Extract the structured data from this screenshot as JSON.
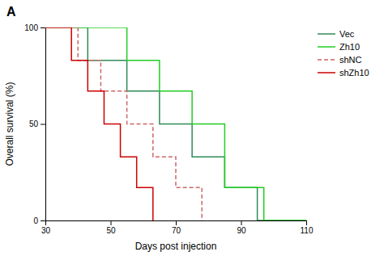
{
  "chart_data": {
    "type": "step",
    "title": "A",
    "x_label": "Days post injection",
    "y_label": "Overall survival (%)",
    "xlim": [
      30,
      110
    ],
    "ylim": [
      0,
      100
    ],
    "xticks": [
      30,
      50,
      70,
      90,
      110
    ],
    "yticks": [
      0,
      50,
      100
    ],
    "grid": false,
    "legend": "upper right",
    "series": [
      {
        "name": "Vec",
        "color": "#2e8b57",
        "line_style": "solid",
        "x": [
          30,
          43,
          43,
          55,
          55,
          65,
          65,
          75,
          75,
          85,
          85,
          95,
          95,
          110
        ],
        "values": [
          100,
          100,
          83,
          83,
          67,
          67,
          50,
          50,
          33,
          33,
          17,
          17,
          0,
          0
        ]
      },
      {
        "name": "Zh10",
        "color": "#22cc22",
        "line_style": "solid",
        "x": [
          30,
          55,
          55,
          65,
          65,
          75,
          75,
          85,
          85,
          97,
          97,
          110
        ],
        "values": [
          100,
          100,
          83,
          83,
          67,
          67,
          50,
          50,
          17,
          17,
          0,
          0
        ]
      },
      {
        "name": "shNC",
        "color": "#cc6666",
        "line_style": "dashed",
        "x": [
          30,
          40,
          40,
          47,
          47,
          55,
          55,
          63,
          63,
          70,
          70,
          78,
          78,
          78
        ],
        "values": [
          100,
          100,
          83,
          83,
          67,
          67,
          50,
          50,
          33,
          33,
          17,
          17,
          0,
          0
        ]
      },
      {
        "name": "shZh10",
        "color": "#cc0000",
        "line_style": "solid",
        "x": [
          30,
          38,
          38,
          43,
          43,
          48,
          48,
          53,
          53,
          58,
          58,
          63,
          63,
          63
        ],
        "values": [
          100,
          100,
          83,
          83,
          67,
          67,
          50,
          50,
          33,
          33,
          17,
          17,
          0,
          0
        ]
      }
    ]
  }
}
